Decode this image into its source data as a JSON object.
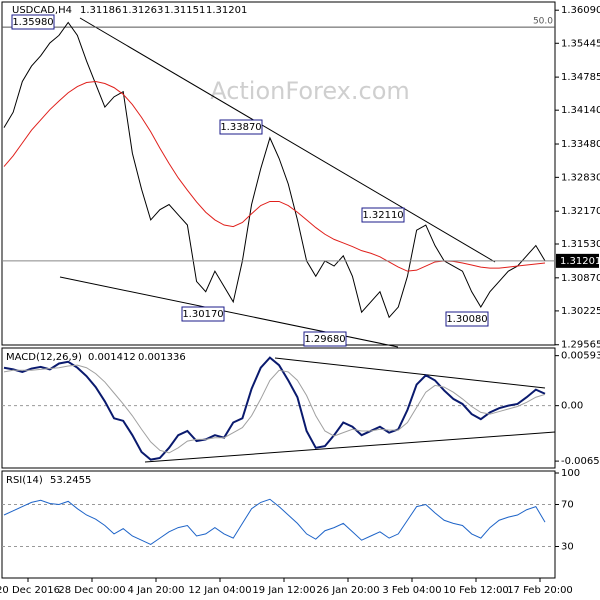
{
  "chart_data": [
    {
      "type": "line",
      "title": "USDCAD,H4",
      "ohlc": [
        1.31186,
        1.31263,
        1.31151,
        1.31201
      ],
      "ylim": [
        1.2956,
        1.3625
      ],
      "yticks": [
        {
          "value": 1.3609,
          "label": "1.36090"
        },
        {
          "value": 1.35445,
          "label": "1.35445"
        },
        {
          "value": 1.34785,
          "label": "1.34785"
        },
        {
          "value": 1.3414,
          "label": "1.34140"
        },
        {
          "value": 1.3348,
          "label": "1.33480"
        },
        {
          "value": 1.3283,
          "label": "1.32830"
        },
        {
          "value": 1.3217,
          "label": "1.32170"
        },
        {
          "value": 1.3153,
          "label": "1.31530"
        },
        {
          "value": 1.3087,
          "label": "1.30870"
        },
        {
          "value": 1.30225,
          "label": "1.30225"
        },
        {
          "value": 1.29565,
          "label": "1.29565"
        }
      ],
      "levels": [
        {
          "value": 1.3576,
          "label": "50.0"
        }
      ],
      "annotations": [
        "1.35980",
        "1.33870",
        "1.32110",
        "1.30170",
        "1.29680",
        "1.30080"
      ],
      "watermark": "ActionForex.com",
      "series": [
        {
          "name": "Price",
          "color": "#000000",
          "values": [
            1.338,
            1.341,
            1.347,
            1.35,
            1.352,
            1.3545,
            1.356,
            1.3585,
            1.356,
            1.351,
            1.3465,
            1.342,
            1.344,
            1.345,
            1.333,
            1.326,
            1.32,
            1.322,
            1.323,
            1.321,
            1.319,
            1.308,
            1.306,
            1.31,
            1.307,
            1.304,
            1.312,
            1.323,
            1.33,
            1.336,
            1.332,
            1.327,
            1.32,
            1.312,
            1.309,
            1.312,
            1.311,
            1.313,
            1.309,
            1.302,
            1.304,
            1.306,
            1.301,
            1.303,
            1.309,
            1.318,
            1.319,
            1.315,
            1.312,
            1.311,
            1.31,
            1.306,
            1.303,
            1.306,
            1.308,
            1.31,
            1.311,
            1.313,
            1.315,
            1.31201
          ]
        },
        {
          "name": "MA",
          "color": "#e0201c",
          "values": [
            1.3304,
            1.3325,
            1.335,
            1.3375,
            1.3395,
            1.3415,
            1.3432,
            1.3448,
            1.346,
            1.3468,
            1.347,
            1.3466,
            1.3458,
            1.3445,
            1.3425,
            1.34,
            1.3372,
            1.334,
            1.331,
            1.3282,
            1.3258,
            1.3235,
            1.3215,
            1.32,
            1.319,
            1.3187,
            1.3195,
            1.3212,
            1.3228,
            1.3236,
            1.3236,
            1.3228,
            1.3215,
            1.32,
            1.3185,
            1.3172,
            1.3162,
            1.3155,
            1.3148,
            1.314,
            1.3135,
            1.3128,
            1.3118,
            1.3108,
            1.31,
            1.3102,
            1.311,
            1.3118,
            1.312,
            1.3119,
            1.3116,
            1.3112,
            1.3108,
            1.3106,
            1.3106,
            1.3108,
            1.311,
            1.3112,
            1.3114,
            1.3116
          ]
        }
      ]
    },
    {
      "type": "line",
      "title": "MACD(12,26,9)",
      "readout": [
        0.001412,
        0.001336
      ],
      "ylim": [
        -0.0068,
        0.0066
      ],
      "yticks": [
        0.00593,
        {
          "value": 0,
          "label": "0.00"
        },
        -0.006575
      ],
      "series": [
        {
          "name": "MACD",
          "color": "#0a1a6e",
          "values": [
            0.0045,
            0.0043,
            0.004,
            0.0044,
            0.0046,
            0.0043,
            0.005,
            0.0052,
            0.0045,
            0.0035,
            0.0022,
            0.0005,
            -0.0015,
            -0.0018,
            -0.0035,
            -0.0055,
            -0.0064,
            -0.0062,
            -0.005,
            -0.0035,
            -0.003,
            -0.0042,
            -0.004,
            -0.0035,
            -0.0038,
            -0.002,
            -0.0015,
            0.002,
            0.0045,
            0.0057,
            0.0048,
            0.003,
            0.001,
            -0.003,
            -0.005,
            -0.0048,
            -0.0035,
            -0.002,
            -0.0025,
            -0.0035,
            -0.003,
            -0.0025,
            -0.0032,
            -0.0028,
            -0.0005,
            0.0025,
            0.0036,
            0.003,
            0.0018,
            0.0008,
            0.0002,
            -0.001,
            -0.0016,
            -0.0008,
            -0.0003,
            0.0,
            0.0002,
            0.001,
            0.0019,
            0.001412
          ]
        },
        {
          "name": "Signal",
          "color": "#a0a0a0",
          "values": [
            0.004,
            0.0042,
            0.0042,
            0.0042,
            0.0043,
            0.0044,
            0.0045,
            0.0047,
            0.0048,
            0.0045,
            0.0038,
            0.0028,
            0.0015,
            0.0002,
            -0.0012,
            -0.0028,
            -0.0043,
            -0.0053,
            -0.0056,
            -0.005,
            -0.0042,
            -0.004,
            -0.004,
            -0.0038,
            -0.0038,
            -0.0032,
            -0.0026,
            -0.0012,
            0.0008,
            0.003,
            0.0042,
            0.004,
            0.003,
            0.0012,
            -0.0012,
            -0.003,
            -0.0036,
            -0.0032,
            -0.0028,
            -0.003,
            -0.003,
            -0.0028,
            -0.0029,
            -0.0029,
            -0.002,
            -0.0002,
            0.0016,
            0.0024,
            0.0022,
            0.0016,
            0.0008,
            -0.0001,
            -0.0008,
            -0.001,
            -0.0007,
            -0.0004,
            -0.0001,
            0.0004,
            0.001,
            0.001336
          ]
        }
      ]
    },
    {
      "type": "line",
      "title": "RSI(14)",
      "readout": [
        53.2455
      ],
      "ylim": [
        0,
        100
      ],
      "yticks": [
        100,
        70,
        30
      ],
      "x_labels": [
        "20 Dec 2016",
        "28 Dec 00:00",
        "4 Jan 20:00",
        "12 Jan 04:00",
        "19 Jan 12:00",
        "26 Jan 20:00",
        "3 Feb 04:00",
        "10 Feb 12:00",
        "17 Feb 20:00"
      ],
      "series": [
        {
          "name": "RSI",
          "color": "#1e64c8",
          "values": [
            60,
            64,
            68,
            72,
            74,
            71,
            70,
            73,
            66,
            60,
            56,
            50,
            42,
            47,
            40,
            36,
            32,
            38,
            44,
            48,
            50,
            40,
            42,
            48,
            42,
            38,
            52,
            66,
            72,
            75,
            68,
            60,
            52,
            42,
            37,
            45,
            48,
            52,
            44,
            36,
            40,
            44,
            38,
            42,
            55,
            68,
            70,
            62,
            55,
            52,
            50,
            42,
            38,
            48,
            55,
            58,
            60,
            65,
            68,
            53.2455
          ]
        }
      ]
    }
  ]
}
